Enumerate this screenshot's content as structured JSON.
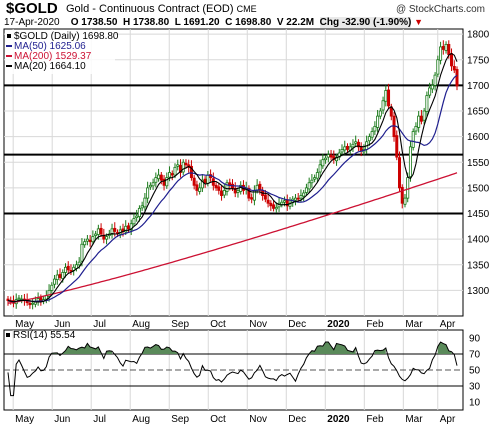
{
  "header": {
    "symbol": "$GOLD",
    "contract": "Gold - Continuous Contract (EOD)",
    "exchange": "CME",
    "copyright": "@ StockCharts.com",
    "date": "17-Apr-2020",
    "open": "O 1738.50",
    "high": "H 1738.80",
    "low": "L 1691.20",
    "close": "C 1698.80",
    "volume": "V 22.2M",
    "change": "Chg -32.90 (-1.90%)",
    "change_arrow": "▼"
  },
  "legend": {
    "price": "$GOLD (Daily) 1698.80",
    "ma50": "MA(50) 1625.06",
    "ma200": "MA(200) 1529.37",
    "ma20": "MA(20) 1664.10"
  },
  "rsi_legend": "RSI(14) 55.54",
  "colors": {
    "up": "#1a7a1a",
    "down": "#cc0000",
    "ma50": "#1f1f8f",
    "ma200": "#cc1133",
    "ma20": "#000000",
    "rsi_fill": "#5a8a5a",
    "grid": "#d8d8d8"
  },
  "chart_data": [
    {
      "type": "candlestick",
      "title": "$GOLD (Daily)",
      "x_labels": [
        "May",
        "Jun",
        "Jul",
        "Aug",
        "Sep",
        "Oct",
        "Nov",
        "Dec",
        "2020",
        "Feb",
        "Mar",
        "Apr"
      ],
      "y_ticks": [
        1300,
        1350,
        1400,
        1450,
        1500,
        1550,
        1600,
        1650,
        1700,
        1750,
        1800
      ],
      "ylim": [
        1250,
        1810
      ],
      "grid": true,
      "horizontal_lines": [
        1450,
        1565,
        1700
      ],
      "price": [
        1280,
        1278,
        1275,
        1282,
        1285,
        1283,
        1280,
        1276,
        1272,
        1275,
        1278,
        1284,
        1280,
        1282,
        1290,
        1300,
        1310,
        1322,
        1330,
        1325,
        1335,
        1345,
        1340,
        1338,
        1345,
        1350,
        1355,
        1390,
        1395,
        1400,
        1395,
        1405,
        1410,
        1420,
        1410,
        1400,
        1405,
        1410,
        1420,
        1415,
        1410,
        1418,
        1415,
        1425,
        1420,
        1430,
        1440,
        1445,
        1460,
        1465,
        1480,
        1500,
        1505,
        1510,
        1520,
        1525,
        1515,
        1505,
        1520,
        1530,
        1525,
        1540,
        1545,
        1530,
        1550,
        1545,
        1540,
        1520,
        1505,
        1495,
        1500,
        1515,
        1510,
        1525,
        1520,
        1505,
        1500,
        1495,
        1485,
        1495,
        1510,
        1505,
        1500,
        1490,
        1495,
        1505,
        1495,
        1500,
        1480,
        1478,
        1495,
        1505,
        1495,
        1485,
        1478,
        1470,
        1465,
        1460,
        1462,
        1470,
        1472,
        1475,
        1465,
        1470,
        1478,
        1480,
        1478,
        1485,
        1490,
        1500,
        1510,
        1515,
        1520,
        1530,
        1545,
        1555,
        1558,
        1565,
        1560,
        1555,
        1560,
        1568,
        1575,
        1580,
        1575,
        1580,
        1585,
        1590,
        1580,
        1572,
        1575,
        1590,
        1600,
        1610,
        1620,
        1640,
        1650,
        1670,
        1690,
        1660,
        1640,
        1600,
        1560,
        1500,
        1470,
        1480,
        1520,
        1580,
        1610,
        1620,
        1640,
        1630,
        1650,
        1680,
        1695,
        1700,
        1720,
        1750,
        1775,
        1770,
        1780,
        1760,
        1738,
        1730,
        1698.8
      ],
      "series": [
        {
          "name": "MA(50)",
          "last": 1625.06
        },
        {
          "name": "MA(200)",
          "last": 1529.37
        },
        {
          "name": "MA(20)",
          "last": 1664.1
        }
      ]
    },
    {
      "type": "line",
      "title": "RSI(14)",
      "y_ticks": [
        10,
        30,
        50,
        70,
        90
      ],
      "ylim": [
        0,
        100
      ],
      "horizontal_lines": [
        30,
        50,
        70
      ],
      "last": 55.54
    }
  ]
}
